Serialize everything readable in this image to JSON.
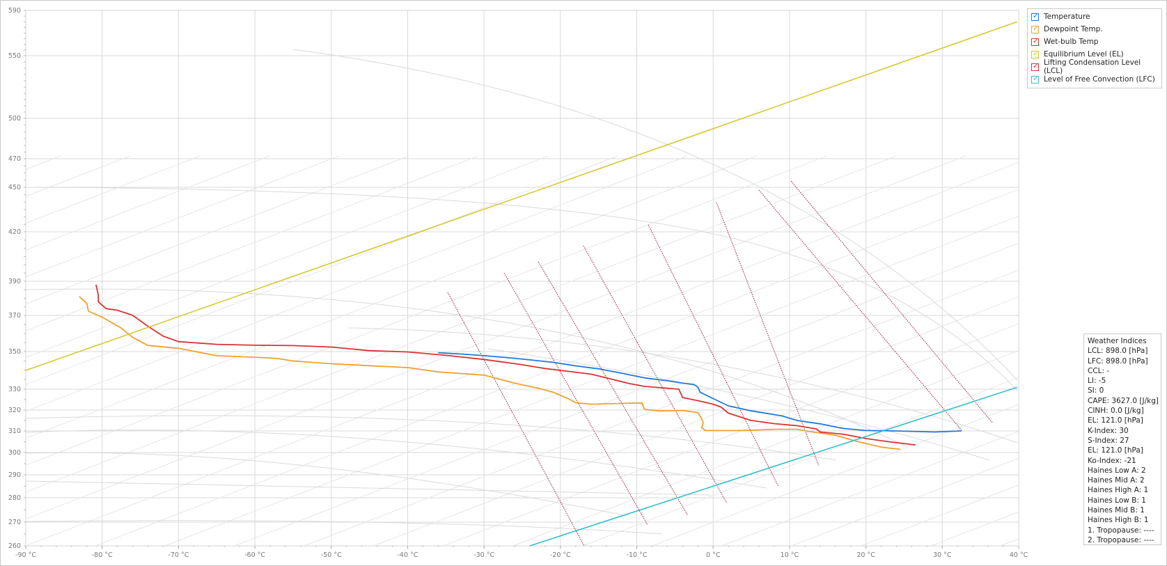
{
  "legend": [
    {
      "label": "Temperature",
      "color": "#1e78dc",
      "checked": true
    },
    {
      "label": "Dewpoint Temp.",
      "color": "#f0a030",
      "checked": true
    },
    {
      "label": "Wet-bulb Temp",
      "color": "#dc3232",
      "checked": true
    },
    {
      "label": "Equilibrium Level (EL)",
      "color": "#d6c832",
      "checked": true
    },
    {
      "label": "Lifting Condensation Level (LCL)",
      "color": "#dc3232",
      "checked": true
    },
    {
      "label": "Level of Free Convection (LFC)",
      "color": "#32c0c8",
      "checked": true
    }
  ],
  "indices": {
    "title": "Weather Indices",
    "items": [
      "LCL: 898.0 [hPa]",
      "LFC: 898.0 [hPa]",
      "CCL: -",
      "LI: -5",
      "SI: 0",
      "CAPE: 3627.0 [J/kg]",
      "CINH: 0.0 [J/kg]",
      "EL: 121.0 [hPa]",
      "K-Index: 30",
      "S-Index: 27",
      "EL: 121.0 [hPa]",
      "Ko-Index: -21",
      "Haines Low A: 2",
      "Haines Mid A: 2",
      "Haines High A: 1",
      "Haines Low B: 1",
      "Haines Mid B: 1",
      "Haines High B: 1",
      "1. Tropopause: ----",
      "2. Tropopause: ----"
    ]
  },
  "chart_data": {
    "type": "line",
    "x_unit": "°C",
    "xlim": [
      -90,
      40
    ],
    "ylim": [
      260,
      590
    ],
    "x_ticks": [
      -90,
      -80,
      -70,
      -60,
      -50,
      -40,
      -30,
      -20,
      -10,
      0,
      10,
      20,
      30,
      40
    ],
    "x_tick_labels": [
      "-90 °C",
      "-80 °C",
      "-70 °C",
      "-60 °C",
      "-50 °C",
      "-40 °C",
      "-30 °C",
      "-20 °C",
      "-10 °C",
      "0 °C",
      "10 °C",
      "20 °C",
      "30 °C",
      "40 °C"
    ],
    "y_ticks": [
      260,
      270,
      280,
      290,
      300,
      310,
      320,
      330,
      350,
      370,
      390,
      420,
      450,
      470,
      500,
      550,
      590
    ],
    "y_tick_labels": [
      "260",
      "270",
      "280",
      "290",
      "300",
      "310",
      "320",
      "330",
      "350",
      "370",
      "390",
      "420",
      "450",
      "470",
      "500",
      "550",
      "590"
    ],
    "grid": true,
    "legend_position": "top-right",
    "series": [
      {
        "name": "Temperature",
        "color": "#1e78dc",
        "points": [
          [
            32.5,
            310
          ],
          [
            29,
            309.5
          ],
          [
            24,
            310
          ],
          [
            20,
            310.2
          ],
          [
            17,
            311.2
          ],
          [
            14,
            313.4
          ],
          [
            11,
            315
          ],
          [
            9,
            317.2
          ],
          [
            5,
            319.6
          ],
          [
            2,
            322
          ],
          [
            0,
            325.5
          ],
          [
            -1.7,
            328.5
          ],
          [
            -2,
            331
          ],
          [
            -2.5,
            332.5
          ],
          [
            -4,
            333.2
          ],
          [
            -6,
            334.5
          ],
          [
            -9,
            336
          ],
          [
            -12,
            338.5
          ],
          [
            -15,
            340.8
          ],
          [
            -18,
            342.4
          ],
          [
            -21,
            344.3
          ],
          [
            -24,
            345.6
          ],
          [
            -27,
            346.8
          ],
          [
            -30,
            347.8
          ],
          [
            -33,
            348.7
          ],
          [
            -36,
            349.4
          ]
        ]
      },
      {
        "name": "Dewpoint Temp.",
        "color": "#f0a030",
        "points": [
          [
            24.5,
            301.5
          ],
          [
            22,
            302.5
          ],
          [
            19,
            305
          ],
          [
            16,
            308
          ],
          [
            12.5,
            309.8
          ],
          [
            11,
            310.8
          ],
          [
            8,
            310.8
          ],
          [
            4,
            310.2
          ],
          [
            -1,
            310.2
          ],
          [
            -1.5,
            311.5
          ],
          [
            -1.3,
            314
          ],
          [
            -1.6,
            316.5
          ],
          [
            -2,
            318.8
          ],
          [
            -4,
            319.8
          ],
          [
            -7,
            319.6
          ],
          [
            -9,
            320.3
          ],
          [
            -9.3,
            323.4
          ],
          [
            -12,
            323.2
          ],
          [
            -16,
            322.8
          ],
          [
            -18,
            323.5
          ],
          [
            -19,
            325.5
          ],
          [
            -21,
            328.6
          ],
          [
            -23,
            330.6
          ],
          [
            -26,
            333.2
          ],
          [
            -30,
            337.5
          ],
          [
            -36,
            339.2
          ],
          [
            -40,
            341.5
          ],
          [
            -45,
            342.5
          ],
          [
            -50,
            343.5
          ],
          [
            -55,
            345
          ],
          [
            -57,
            346.3
          ],
          [
            -60,
            347
          ],
          [
            -65,
            347.8
          ],
          [
            -70,
            351.8
          ],
          [
            -74,
            353.4
          ],
          [
            -76,
            357.8
          ],
          [
            -77.5,
            363
          ],
          [
            -80,
            369
          ],
          [
            -81.8,
            372.5
          ],
          [
            -82,
            377
          ],
          [
            -83,
            381
          ]
        ]
      },
      {
        "name": "Wet-bulb Temp",
        "color": "#dc3232",
        "points": [
          [
            26.5,
            303.5
          ],
          [
            23,
            305
          ],
          [
            20,
            306.5
          ],
          [
            17,
            308.5
          ],
          [
            14,
            309.5
          ],
          [
            13.5,
            311
          ],
          [
            11,
            312.5
          ],
          [
            8,
            313.5
          ],
          [
            5,
            315
          ],
          [
            2,
            318.5
          ],
          [
            1,
            321.5
          ],
          [
            0,
            322.8
          ],
          [
            -2,
            324.5
          ],
          [
            -4,
            326
          ],
          [
            -4.5,
            330
          ],
          [
            -6,
            330.5
          ],
          [
            -9,
            331.5
          ],
          [
            -11,
            333
          ],
          [
            -14,
            336
          ],
          [
            -16,
            338
          ],
          [
            -19,
            339.5
          ],
          [
            -22,
            341
          ],
          [
            -25,
            343
          ],
          [
            -30,
            345.8
          ],
          [
            -35,
            348
          ],
          [
            -40,
            349.8
          ],
          [
            -45,
            350.5
          ],
          [
            -50,
            352.5
          ],
          [
            -55,
            353.3
          ],
          [
            -60,
            353.5
          ],
          [
            -65,
            354
          ],
          [
            -70,
            355.5
          ],
          [
            -72,
            358.5
          ],
          [
            -74,
            364
          ],
          [
            -76,
            370
          ],
          [
            -78,
            373
          ],
          [
            -79.5,
            374
          ],
          [
            -80.5,
            378
          ],
          [
            -80.5,
            382
          ],
          [
            -80.8,
            388
          ]
        ]
      },
      {
        "name": "Equilibrium Level (EL)",
        "color": "#d6c832",
        "points": [
          [
            -90,
            340
          ],
          [
            39.8,
            580
          ]
        ]
      },
      {
        "name": "Level of Free Convection (LFC)",
        "color": "#32c0c8",
        "points": [
          [
            -24,
            260
          ],
          [
            39.8,
            331
          ]
        ]
      }
    ]
  }
}
